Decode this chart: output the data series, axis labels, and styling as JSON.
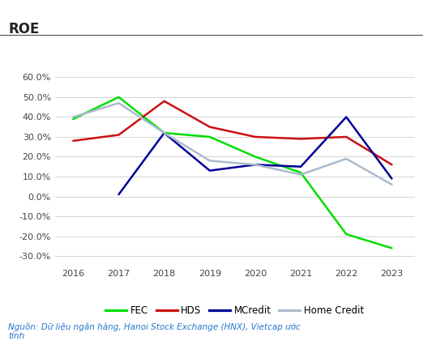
{
  "title": "ROE",
  "years": [
    2016,
    2017,
    2018,
    2019,
    2020,
    2021,
    2022,
    2023
  ],
  "series": {
    "FEC": [
      0.39,
      0.5,
      0.32,
      0.3,
      0.2,
      0.12,
      -0.19,
      -0.26
    ],
    "HDS": [
      0.28,
      0.31,
      0.48,
      0.35,
      0.3,
      0.29,
      0.3,
      0.16
    ],
    "MCredit": [
      null,
      0.01,
      0.32,
      0.13,
      0.16,
      0.15,
      0.4,
      0.09
    ],
    "Home Credit": [
      0.4,
      0.47,
      0.32,
      0.18,
      0.16,
      0.11,
      0.19,
      0.06
    ]
  },
  "colors": {
    "FEC": "#00dd00",
    "HDS": "#cc1111",
    "MCredit": "#000099",
    "Home Credit": "#aabbcc"
  },
  "ylim": [
    -0.35,
    0.68
  ],
  "yticks": [
    -0.3,
    -0.2,
    -0.1,
    0.0,
    0.1,
    0.2,
    0.3,
    0.4,
    0.5,
    0.6
  ],
  "source_text": "Nguồn: Dữ liệu ngân hàng, Hanoi Stock Exchange (HNX), Vietcap ước\ntính",
  "source_color": "#2277cc",
  "background_color": "#ffffff",
  "line_width": 1.8,
  "title_color": "#222222",
  "tick_color": "#444444",
  "grid_color": "#cccccc",
  "border_line_color": "#444444"
}
